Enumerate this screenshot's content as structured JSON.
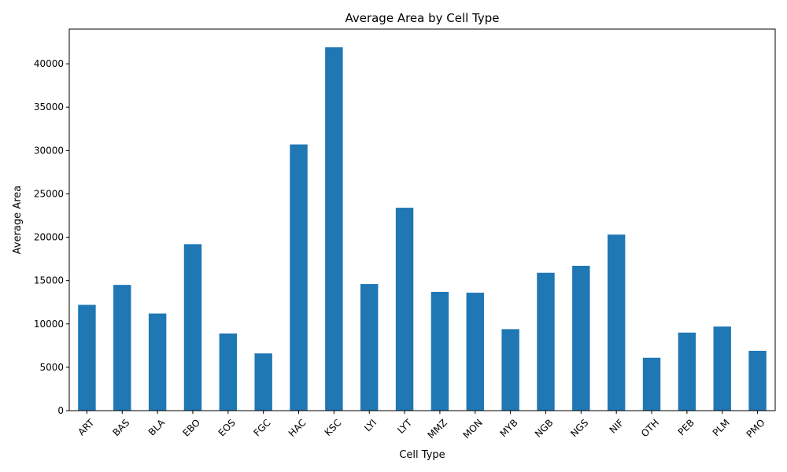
{
  "chart_data": {
    "type": "bar",
    "title": "Average Area by Cell Type",
    "xlabel": "Cell Type",
    "ylabel": "Average Area",
    "categories": [
      "ART",
      "BAS",
      "BLA",
      "EBO",
      "EOS",
      "FGC",
      "HAC",
      "KSC",
      "LYI",
      "LYT",
      "MMZ",
      "MON",
      "MYB",
      "NGB",
      "NGS",
      "NIF",
      "OTH",
      "PEB",
      "PLM",
      "PMO"
    ],
    "values": [
      12200,
      14500,
      11200,
      19200,
      8900,
      6600,
      30700,
      41900,
      14600,
      23400,
      13700,
      13600,
      9400,
      15900,
      16700,
      20300,
      6100,
      9000,
      9700,
      6900
    ],
    "ylim": [
      0,
      44000
    ],
    "yticks": [
      0,
      5000,
      10000,
      15000,
      20000,
      25000,
      30000,
      35000,
      40000
    ],
    "bar_color": "#1f77b4",
    "grid": false,
    "legend": "none"
  }
}
